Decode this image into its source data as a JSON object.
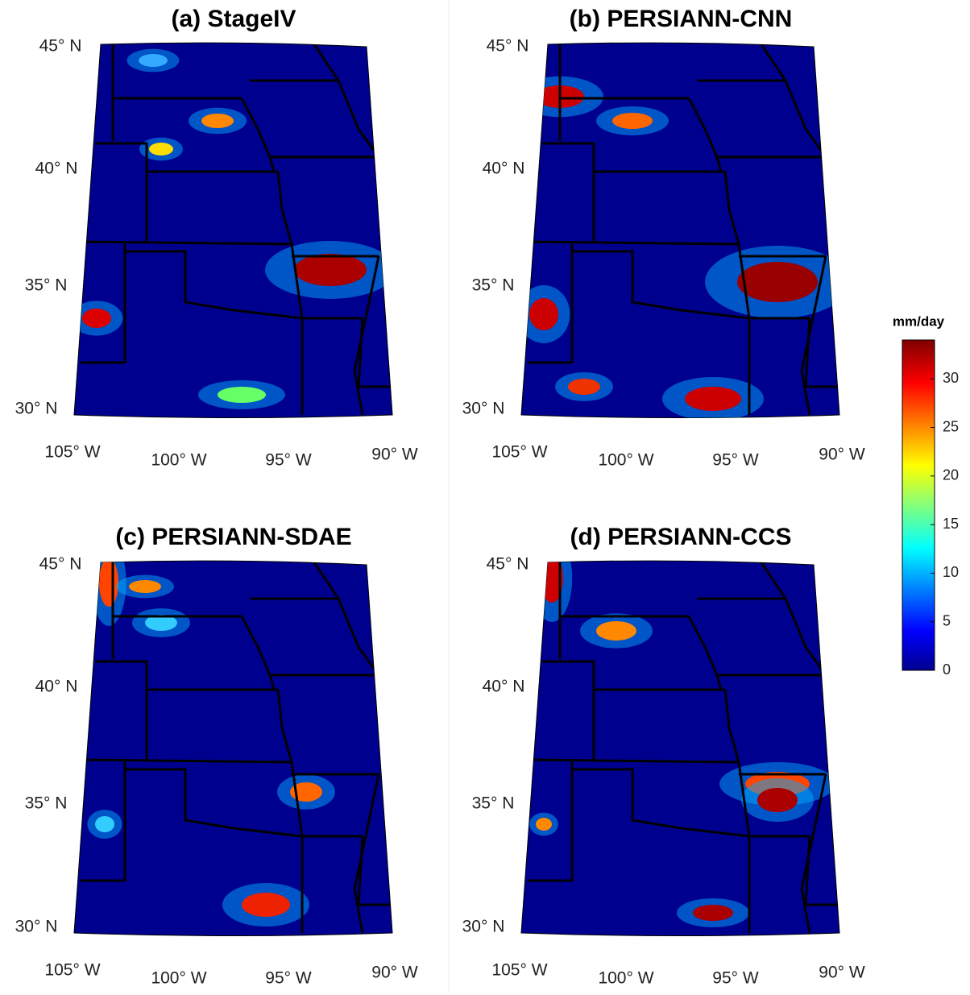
{
  "panels": [
    {
      "title": "(a) StageIV"
    },
    {
      "title": "(b) PERSIANN-CNN"
    },
    {
      "title": "(c) PERSIANN-SDAE"
    },
    {
      "title": "(d) PERSIANN-CCS"
    }
  ],
  "lat_labels": [
    "45° N",
    "40° N",
    "35° N",
    "30° N"
  ],
  "lon_labels": [
    "105° W",
    "100° W",
    "95° W",
    "90° W"
  ],
  "colorbar": {
    "label": "mm/day",
    "range": [
      0,
      34
    ],
    "ticks": [
      0,
      5,
      10,
      15,
      20,
      25,
      30
    ]
  }
}
